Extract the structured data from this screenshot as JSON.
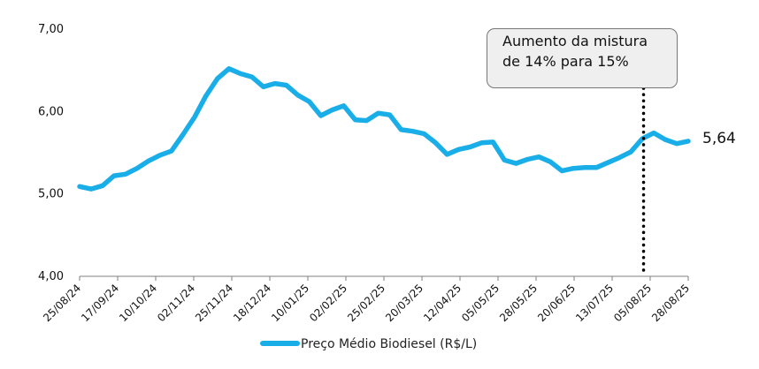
{
  "chart_data": {
    "type": "line",
    "title": "",
    "xlabel": "",
    "ylabel": "",
    "ylim": [
      4.0,
      7.0
    ],
    "y_ticks": [
      "4,00",
      "5,00",
      "6,00",
      "7,00"
    ],
    "y_tick_values": [
      4,
      5,
      6,
      7
    ],
    "x_ticks": [
      "25/08/24",
      "17/09/24",
      "10/10/24",
      "02/11/24",
      "25/11/24",
      "18/12/24",
      "10/01/25",
      "02/02/25",
      "25/02/25",
      "20/03/25",
      "12/04/25",
      "05/05/25",
      "28/05/25",
      "20/06/25",
      "13/07/25",
      "05/08/25",
      "28/08/25"
    ],
    "grid": false,
    "legend_position": "bottom-center",
    "series": [
      {
        "name": "Preço Médio Biodiesel (R$/L)",
        "color": "#1AAEE8",
        "values": [
          5.09,
          5.06,
          5.1,
          5.22,
          5.24,
          5.31,
          5.4,
          5.47,
          5.52,
          5.72,
          5.93,
          6.19,
          6.4,
          6.52,
          6.46,
          6.42,
          6.3,
          6.34,
          6.32,
          6.2,
          6.12,
          5.95,
          6.02,
          6.07,
          5.9,
          5.89,
          5.98,
          5.96,
          5.78,
          5.76,
          5.73,
          5.62,
          5.48,
          5.54,
          5.57,
          5.62,
          5.63,
          5.41,
          5.37,
          5.42,
          5.45,
          5.39,
          5.28,
          5.31,
          5.32,
          5.32,
          5.38,
          5.44,
          5.51,
          5.67,
          5.74,
          5.66,
          5.61,
          5.64
        ]
      }
    ],
    "end_label": "5,64",
    "annotation": {
      "text": "Aumento da mistura de 14% para 15%",
      "marker_date": "01/08/25",
      "marker_style": "dotted-vertical-line"
    }
  }
}
